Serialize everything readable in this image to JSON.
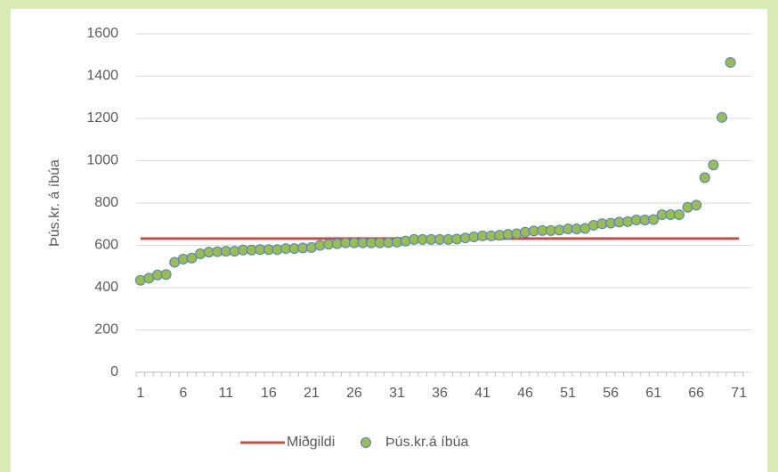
{
  "chart_data": {
    "type": "line-scatter",
    "ylabel": "Þús.kr. á íbúa",
    "categories": [
      "1",
      null,
      null,
      null,
      null,
      "6",
      null,
      null,
      null,
      null,
      "11",
      null,
      null,
      null,
      null,
      "16",
      null,
      null,
      null,
      null,
      "21",
      null,
      null,
      null,
      null,
      "26",
      null,
      null,
      null,
      null,
      "31",
      null,
      null,
      null,
      null,
      "36",
      null,
      null,
      null,
      null,
      "41",
      null,
      null,
      null,
      null,
      "46",
      null,
      null,
      null,
      null,
      "51",
      null,
      null,
      null,
      null,
      "56",
      null,
      null,
      null,
      null,
      "61",
      null,
      null,
      null,
      null,
      "66",
      null,
      null,
      null,
      null,
      "71"
    ],
    "series": [
      {
        "name": "Miðgildi",
        "kind": "line",
        "color": "#c0504d",
        "values": [
          632,
          632,
          632,
          632,
          632,
          632,
          632,
          632,
          632,
          632,
          632,
          632,
          632,
          632,
          632,
          632,
          632,
          632,
          632,
          632,
          632,
          632,
          632,
          632,
          632,
          632,
          632,
          632,
          632,
          632,
          632,
          632,
          632,
          632,
          632,
          632,
          632,
          632,
          632,
          632,
          632,
          632,
          632,
          632,
          632,
          632,
          632,
          632,
          632,
          632,
          632,
          632,
          632,
          632,
          632,
          632,
          632,
          632,
          632,
          632,
          632,
          632,
          632,
          632,
          632,
          632,
          632,
          632,
          632,
          632,
          632
        ]
      },
      {
        "name": "Þús.kr.á íbúa",
        "kind": "scatter",
        "color": "#9bbb59",
        "edge": "#4f81bd",
        "values": [
          435,
          445,
          460,
          462,
          520,
          535,
          540,
          560,
          568,
          570,
          572,
          572,
          578,
          578,
          580,
          580,
          580,
          585,
          585,
          588,
          590,
          600,
          605,
          608,
          612,
          612,
          612,
          612,
          612,
          613,
          615,
          620,
          628,
          628,
          628,
          628,
          628,
          630,
          635,
          640,
          645,
          645,
          648,
          652,
          655,
          662,
          668,
          670,
          670,
          672,
          678,
          678,
          680,
          695,
          702,
          705,
          710,
          712,
          720,
          720,
          722,
          745,
          745,
          745,
          780,
          790,
          920,
          980,
          1205,
          1465,
          null
        ]
      }
    ],
    "ylim": [
      0,
      1600
    ],
    "yticks": [
      0,
      200,
      400,
      600,
      800,
      1000,
      1200,
      1400,
      1600
    ],
    "grid": true,
    "legend": "bottom"
  }
}
